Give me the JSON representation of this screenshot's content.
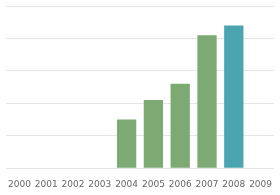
{
  "chart_data": {
    "type": "bar",
    "categories": [
      "2000",
      "2001",
      "2002",
      "2003",
      "2004",
      "2005",
      "2006",
      "2007",
      "2008",
      "2009"
    ],
    "values": [
      0,
      0,
      0,
      0,
      0.3,
      0.42,
      0.52,
      0.82,
      0.88,
      0
    ],
    "colors": [
      "#7daa72",
      "#7daa72",
      "#7daa72",
      "#7daa72",
      "#7daa72",
      "#7daa72",
      "#7daa72",
      "#7daa72",
      "#4aa5b0",
      "#4aa5b0"
    ],
    "ylim": [
      0,
      1.0
    ],
    "yticks": [
      0,
      0.2,
      0.4,
      0.6,
      0.8,
      1.0
    ],
    "grid": true,
    "tick_labels": "x"
  }
}
